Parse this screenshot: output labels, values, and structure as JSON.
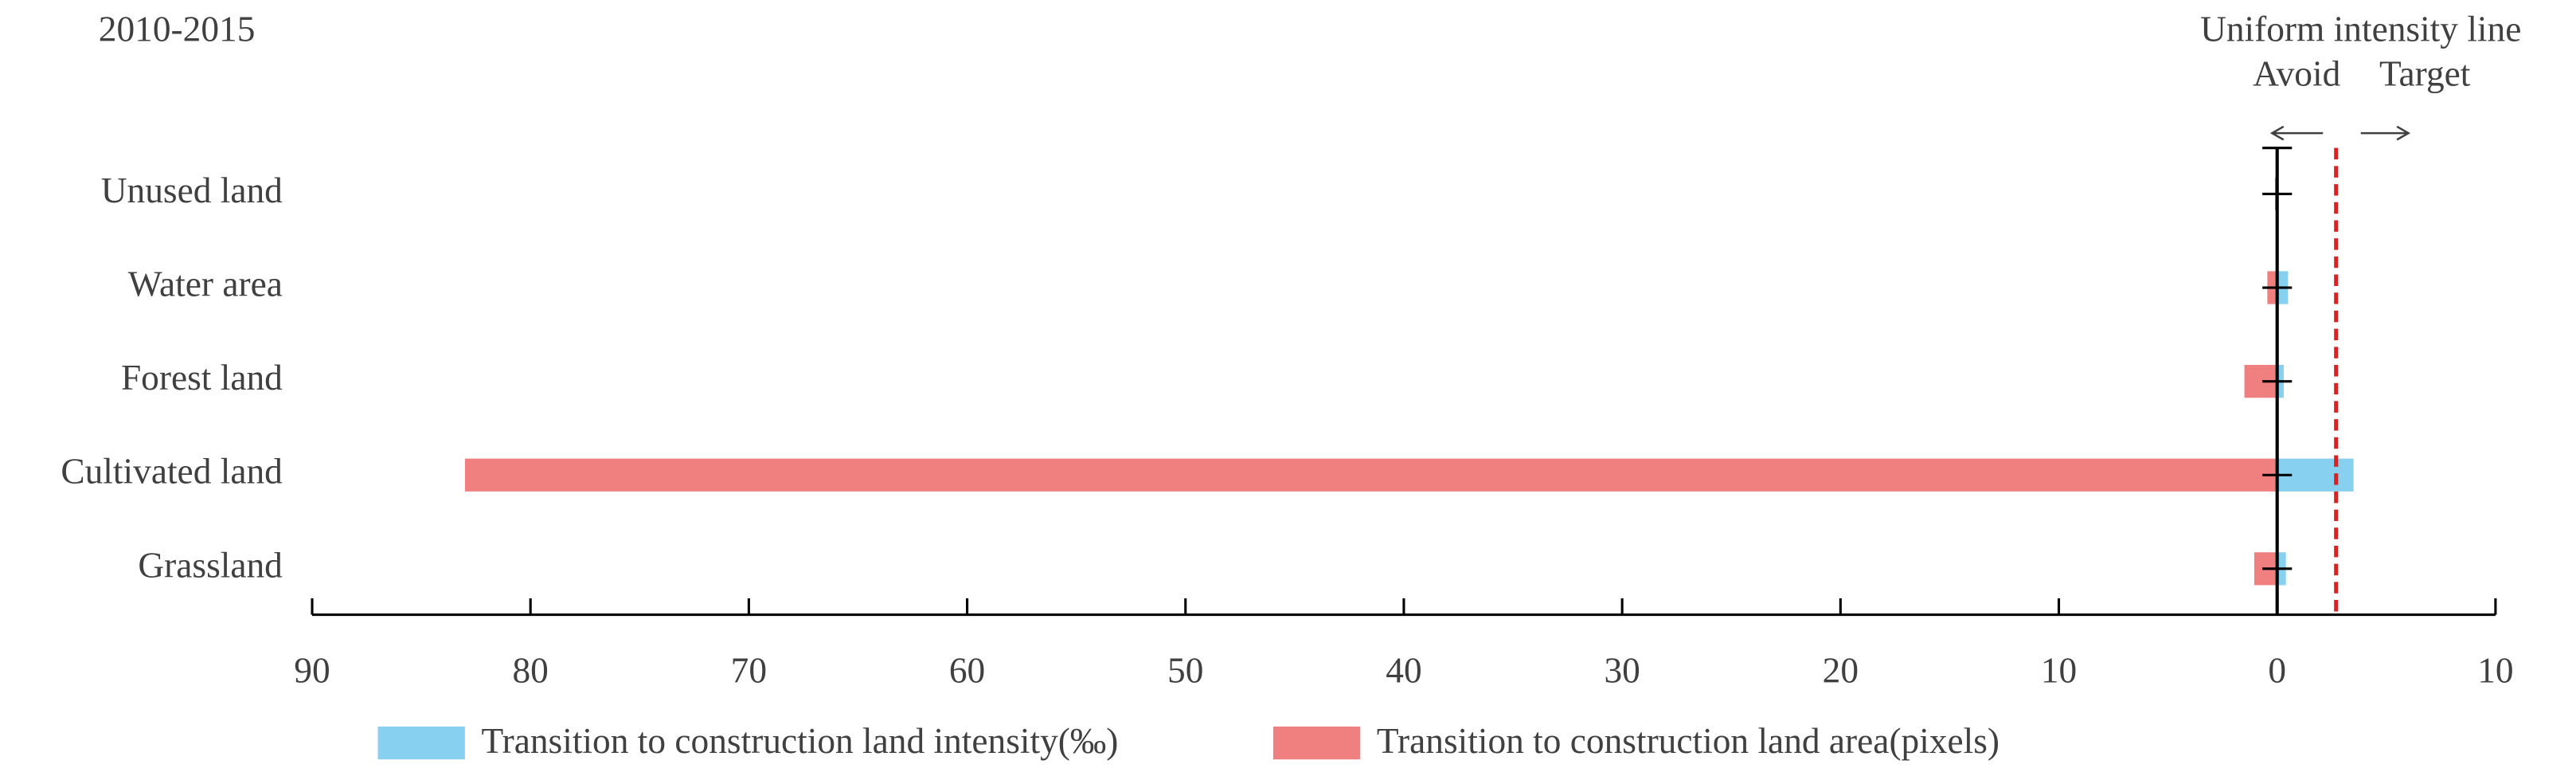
{
  "chart_data": {
    "type": "bar",
    "orientation": "horizontal",
    "title": "2010-2015",
    "categories": [
      "Unused land",
      "Water area",
      "Forest land",
      "Cultivated land",
      "Grassland"
    ],
    "series": [
      {
        "name": "Transition to construction land intensity(‰)",
        "color": "#87d0f0",
        "values": [
          0,
          0.5,
          0.3,
          3.5,
          0.4
        ]
      },
      {
        "name": "Transition to construction land area(pixels)",
        "color": "#f08080",
        "values": [
          -0.1,
          -0.45,
          -1.5,
          -83,
          -1.05
        ]
      }
    ],
    "xlim": [
      -90,
      10
    ],
    "xticks": [
      {
        "value": -90,
        "label": "90"
      },
      {
        "value": -80,
        "label": "80"
      },
      {
        "value": -70,
        "label": "70"
      },
      {
        "value": -60,
        "label": "60"
      },
      {
        "value": -50,
        "label": "50"
      },
      {
        "value": -40,
        "label": "40"
      },
      {
        "value": -30,
        "label": "30"
      },
      {
        "value": -20,
        "label": "20"
      },
      {
        "value": -10,
        "label": "10"
      },
      0,
      10
    ],
    "reference_line": {
      "value": 2.7,
      "color": "#e02020",
      "label": "Uniform intensity line"
    },
    "annotations": {
      "left": "Avoid",
      "right": "Target"
    },
    "legend": "bottom"
  }
}
